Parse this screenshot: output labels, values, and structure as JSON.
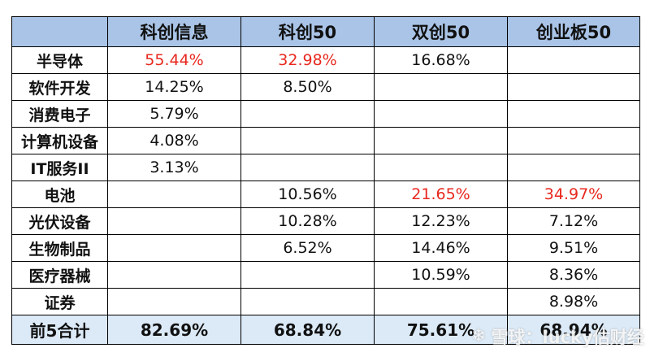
{
  "table": {
    "headers": [
      "",
      "科创信息",
      "科创50",
      "双创50",
      "创业板50"
    ],
    "rows": [
      {
        "label": "半导体",
        "cells": [
          "55.44%",
          "32.98%",
          "16.68%",
          ""
        ],
        "red": [
          true,
          true,
          false,
          false
        ]
      },
      {
        "label": "软件开发",
        "cells": [
          "14.25%",
          "8.50%",
          "",
          ""
        ],
        "red": [
          false,
          false,
          false,
          false
        ]
      },
      {
        "label": "消费电子",
        "cells": [
          "5.79%",
          "",
          "",
          ""
        ],
        "red": [
          false,
          false,
          false,
          false
        ]
      },
      {
        "label": "计算机设备",
        "cells": [
          "4.08%",
          "",
          "",
          ""
        ],
        "red": [
          false,
          false,
          false,
          false
        ]
      },
      {
        "label": "IT服务II",
        "cells": [
          "3.13%",
          "",
          "",
          ""
        ],
        "red": [
          false,
          false,
          false,
          false
        ]
      },
      {
        "label": "电池",
        "cells": [
          "",
          "10.56%",
          "21.65%",
          "34.97%"
        ],
        "red": [
          false,
          false,
          true,
          true
        ]
      },
      {
        "label": "光伏设备",
        "cells": [
          "",
          "10.28%",
          "12.23%",
          "7.12%"
        ],
        "red": [
          false,
          false,
          false,
          false
        ]
      },
      {
        "label": "生物制品",
        "cells": [
          "",
          "6.52%",
          "14.46%",
          "9.51%"
        ],
        "red": [
          false,
          false,
          false,
          false
        ]
      },
      {
        "label": "医疗器械",
        "cells": [
          "",
          "",
          "10.59%",
          "8.36%"
        ],
        "red": [
          false,
          false,
          false,
          false
        ]
      },
      {
        "label": "证券",
        "cells": [
          "",
          "",
          "",
          "8.98%"
        ],
        "red": [
          false,
          false,
          false,
          false
        ]
      }
    ],
    "footer": {
      "label": "前5合计",
      "cells": [
        "82.69%",
        "68.84%",
        "75.61%",
        "68.94%"
      ]
    }
  },
  "colors": {
    "header_bg": "#a9c4e6",
    "footer_bg": "#dceaf7",
    "highlight_red": "#e8281e"
  },
  "watermark": {
    "icon": "snowball-icon",
    "text": "雪球：lucky估财经"
  }
}
